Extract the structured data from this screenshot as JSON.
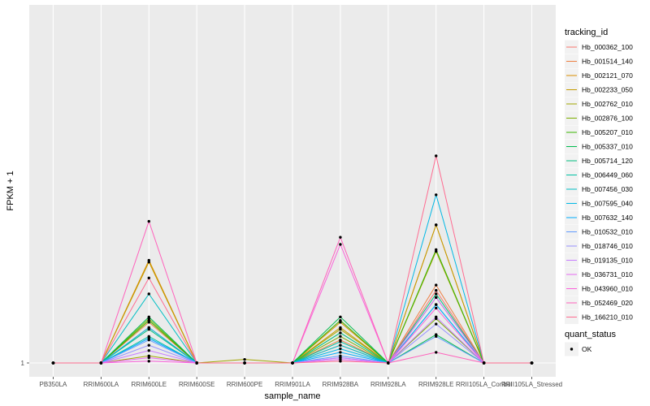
{
  "chart_data": {
    "type": "line",
    "xlabel": "sample_name",
    "ylabel": "FPKM + 1",
    "categories": [
      "PB350LA",
      "RRIM600LA",
      "RRIM600LE",
      "RRIM600SE",
      "RRIM600PE",
      "RRIM901LA",
      "RRIM928BA",
      "RRIM928LA",
      "RRIM928LE",
      "RRII105LA_Control",
      "RRII105LA_Stressed"
    ],
    "y_ticks": [
      "1"
    ],
    "ylim": [
      1,
      10
    ],
    "grid": true,
    "legend_position": "right",
    "legend_title": "tracking_id",
    "series": [
      {
        "name": "Hb_000362_100",
        "color": "#F8766D",
        "values": [
          1,
          1,
          3.0,
          1,
          1,
          1,
          2.0,
          1,
          5.1,
          1,
          1
        ]
      },
      {
        "name": "Hb_001514_140",
        "color": "#EE8044",
        "values": [
          1,
          1,
          3.3,
          1,
          1,
          1,
          2.3,
          1,
          5.4,
          1,
          1
        ]
      },
      {
        "name": "Hb_002121_070",
        "color": "#DB8E00",
        "values": [
          1,
          1,
          6.8,
          1,
          1,
          1,
          3.3,
          1,
          8.8,
          1,
          1
        ]
      },
      {
        "name": "Hb_002233_050",
        "color": "#C49A00",
        "values": [
          1,
          1,
          6.7,
          1,
          1,
          1,
          3.0,
          1,
          8.8,
          1,
          1
        ]
      },
      {
        "name": "Hb_002762_010",
        "color": "#A3A500",
        "values": [
          1,
          1,
          1.4,
          1,
          1.2,
          1,
          2.9,
          1,
          7.3,
          1,
          1
        ]
      },
      {
        "name": "Hb_002876_100",
        "color": "#7CAE00",
        "values": [
          1,
          1,
          3.5,
          1,
          1,
          1,
          2.5,
          1,
          3.5,
          1,
          1
        ]
      },
      {
        "name": "Hb_005207_010",
        "color": "#39B600",
        "values": [
          1,
          1,
          3.4,
          1,
          1,
          1,
          3.4,
          1,
          7.4,
          1,
          1
        ]
      },
      {
        "name": "Hb_005337_010",
        "color": "#00BB4E",
        "values": [
          1,
          1,
          3.6,
          1,
          1,
          1,
          3.6,
          1,
          2.6,
          1,
          1
        ]
      },
      {
        "name": "Hb_005714_120",
        "color": "#00BF7D",
        "values": [
          1,
          1,
          2.9,
          1,
          1,
          1,
          2.7,
          1,
          4.9,
          1,
          1
        ]
      },
      {
        "name": "Hb_006449_060",
        "color": "#00C1A3",
        "values": [
          1,
          1,
          2.5,
          1,
          1,
          1,
          2.2,
          1,
          4.7,
          1,
          1
        ]
      },
      {
        "name": "Hb_007456_030",
        "color": "#00BFC4",
        "values": [
          1,
          1,
          4.9,
          1,
          1,
          1,
          2.0,
          1,
          4.3,
          1,
          1
        ]
      },
      {
        "name": "Hb_007595_040",
        "color": "#00B8E5",
        "values": [
          1,
          1,
          3.0,
          1,
          1,
          1,
          1.8,
          1,
          10.5,
          1,
          1
        ]
      },
      {
        "name": "Hb_007632_140",
        "color": "#00ACFC",
        "values": [
          1,
          1,
          2.4,
          1,
          1,
          1,
          1.6,
          1,
          4.3,
          1,
          1
        ]
      },
      {
        "name": "Hb_010532_010",
        "color": "#619CFF",
        "values": [
          1,
          1,
          2.3,
          1,
          1,
          1,
          1.4,
          1,
          2.5,
          1,
          1
        ]
      },
      {
        "name": "Hb_018746_010",
        "color": "#9590FF",
        "values": [
          1,
          1,
          2.0,
          1,
          1,
          1,
          1.3,
          1,
          3.2,
          1,
          1
        ]
      },
      {
        "name": "Hb_019135_010",
        "color": "#C77CFF",
        "values": [
          1,
          1,
          1.7,
          1,
          1,
          1,
          1.3,
          1,
          3.6,
          1,
          1
        ]
      },
      {
        "name": "Hb_036731_010",
        "color": "#E76BF3",
        "values": [
          1,
          1,
          1.3,
          1,
          1,
          1,
          1.2,
          1,
          4.7,
          1,
          1
        ]
      },
      {
        "name": "Hb_043960_010",
        "color": "#FA62DB",
        "values": [
          1,
          1,
          1.1,
          1,
          1,
          1,
          7.7,
          1,
          4.1,
          1,
          1
        ]
      },
      {
        "name": "Hb_052469_020",
        "color": "#FF62BC",
        "values": [
          1,
          1,
          9.0,
          1,
          1,
          1,
          8.1,
          1,
          1.6,
          1,
          1
        ]
      },
      {
        "name": "Hb_166210_010",
        "color": "#FF6C91",
        "values": [
          1,
          1,
          5.8,
          1,
          1,
          1,
          1.1,
          1,
          12.7,
          1,
          1
        ]
      }
    ],
    "shape_legend": {
      "title": "quant_status",
      "items": [
        "OK"
      ]
    }
  }
}
